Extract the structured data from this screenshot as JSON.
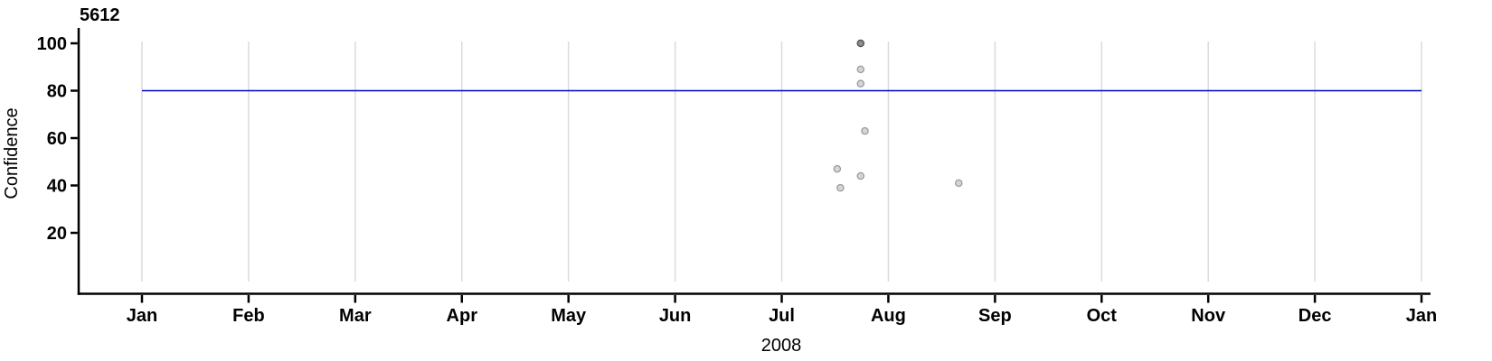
{
  "chart_data": {
    "type": "scatter",
    "title": "5612",
    "ylabel": "Confidence",
    "xlabel": "2008",
    "x_axis": {
      "unit": "month",
      "tick_labels": [
        "Jan",
        "Feb",
        "Mar",
        "Apr",
        "May",
        "Jun",
        "Jul",
        "Aug",
        "Sep",
        "Oct",
        "Nov",
        "Dec",
        "Jan"
      ],
      "year_label": "2008",
      "range_months": [
        -0.59,
        12.09
      ],
      "vertical_gridlines": true,
      "horizontal_gridlines": false
    },
    "y_axis": {
      "ticks": [
        20,
        40,
        60,
        80,
        100
      ],
      "range": [
        -6,
        106.5
      ]
    },
    "reference_line": {
      "y": 80,
      "from_month": 0,
      "to_month": 12,
      "color": "#0000CD"
    },
    "points": [
      {
        "date": "2008-07-23",
        "month": 6.74,
        "confidence": 100,
        "shade": "dark"
      },
      {
        "date": "2008-07-23",
        "month": 6.74,
        "confidence": 89,
        "shade": "light"
      },
      {
        "date": "2008-07-23",
        "month": 6.74,
        "confidence": 83,
        "shade": "light"
      },
      {
        "date": "2008-07-24",
        "month": 6.78,
        "confidence": 63,
        "shade": "light"
      },
      {
        "date": "2008-07-16",
        "month": 6.52,
        "confidence": 47,
        "shade": "light"
      },
      {
        "date": "2008-07-23",
        "month": 6.74,
        "confidence": 44,
        "shade": "light"
      },
      {
        "date": "2008-07-17",
        "month": 6.55,
        "confidence": 39,
        "shade": "light"
      },
      {
        "date": "2008-08-21",
        "month": 7.66,
        "confidence": 41,
        "shade": "light"
      }
    ],
    "colors": {
      "grid": "#DBDBDB",
      "axis": "#000000",
      "reference_line": "#0000CD",
      "point_light_fill": "#D5D5D5",
      "point_light_stroke": "#9A9A9A",
      "point_dark_fill": "#8E8E8E",
      "point_dark_stroke": "#4D4D4D",
      "text": "#000000"
    }
  }
}
